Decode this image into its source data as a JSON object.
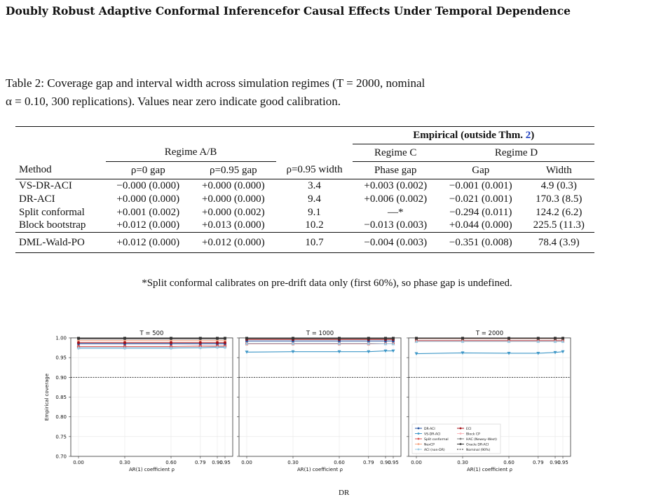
{
  "header": {
    "title": "Doubly Robust Adaptive Conformal Inferencefor Causal Effects Under Temporal Dependence"
  },
  "caption": {
    "line1": "Table 2: Coverage gap and interval width across simulation regimes (T = 2000, nominal",
    "line2": "α = 0.10, 300 replications). Values near zero indicate good calibration."
  },
  "table": {
    "group_empirical_prefix": "Empirical (outside Thm. ",
    "group_empirical_ref": "2",
    "group_empirical_suffix": ")",
    "group_ab": "Regime A/B",
    "group_c": "Regime C",
    "group_d": "Regime D",
    "columns": [
      "Method",
      "ρ=0 gap",
      "ρ=0.95 gap",
      "ρ=0.95 width",
      "Phase gap",
      "Gap",
      "Width"
    ],
    "rows": [
      [
        "VS-DR-ACI",
        "−0.000 (0.000)",
        "+0.000 (0.000)",
        "3.4",
        "+0.003 (0.002)",
        "−0.001 (0.001)",
        "4.9 (0.3)"
      ],
      [
        "DR-ACI",
        "+0.000 (0.000)",
        "+0.000 (0.000)",
        "9.4",
        "+0.006 (0.002)",
        "−0.021 (0.001)",
        "170.3 (8.5)"
      ],
      [
        "Split conformal",
        "+0.001 (0.002)",
        "+0.000 (0.002)",
        "9.1",
        "—*",
        "−0.294 (0.011)",
        "124.2 (6.2)"
      ],
      [
        "Block bootstrap",
        "+0.012 (0.000)",
        "+0.013 (0.000)",
        "10.2",
        "−0.013 (0.003)",
        "+0.044 (0.000)",
        "225.5 (11.3)"
      ]
    ],
    "baseline_row": [
      "DML-Wald-PO",
      "+0.012 (0.000)",
      "+0.012 (0.000)",
      "10.7",
      "−0.004 (0.003)",
      "−0.351 (0.008)",
      "78.4 (3.9)"
    ]
  },
  "footnote": "*Split conformal calibrates on pre-drift data only (first 60%), so phase gap is undefined.",
  "bottom_cut_text": "DR",
  "chart_data": {
    "type": "line",
    "panels": [
      "T = 500",
      "T = 1000",
      "T = 2000"
    ],
    "x": [
      0.0,
      0.3,
      0.6,
      0.79,
      0.9,
      0.95
    ],
    "x_tick_labels": [
      "0.00",
      "0.30",
      "0.60",
      "0.79",
      "0.90",
      "0.95"
    ],
    "xlabel": "AR(1) coefficient ρ",
    "ylabel": "Empirical coverage",
    "ylim": [
      0.7,
      1.0
    ],
    "y_ticks": [
      0.7,
      0.75,
      0.8,
      0.85,
      0.9,
      0.95,
      1.0
    ],
    "y_tick_labels": [
      "0.70",
      "0.75",
      "0.80",
      "0.85",
      "0.90",
      "0.95",
      "1.00"
    ],
    "nominal": 0.9,
    "nominal_label": "Nominal (90%)",
    "legend_location": "lower-left",
    "grid": true,
    "series": [
      {
        "name": "DR-ACI",
        "color": "#1f4e9e",
        "marker": "circle",
        "values": [
          [
            0.985,
            0.985,
            0.985,
            0.985,
            0.985,
            0.985
          ],
          [
            0.992,
            0.992,
            0.992,
            0.992,
            0.992,
            0.992
          ],
          [
            0.993,
            0.993,
            0.993,
            0.993,
            0.993,
            0.993
          ]
        ]
      },
      {
        "name": "VS-DR-ACI",
        "color": "#3e97c7",
        "marker": "triangle-down",
        "values": [
          [
            0.974,
            0.974,
            0.974,
            0.975,
            0.976,
            0.976
          ],
          [
            0.964,
            0.965,
            0.965,
            0.965,
            0.967,
            0.967
          ],
          [
            0.96,
            0.962,
            0.961,
            0.961,
            0.963,
            0.965
          ]
        ]
      },
      {
        "name": "Split conformal",
        "color": "#d9534f",
        "marker": "square",
        "values": [
          [
            0.978,
            0.978,
            0.978,
            0.979,
            0.979,
            0.979
          ],
          [
            0.985,
            0.985,
            0.985,
            0.985,
            0.985,
            0.985
          ],
          [
            0.993,
            0.993,
            0.993,
            0.993,
            0.993,
            0.993
          ]
        ]
      },
      {
        "name": "NexCP",
        "color": "#f4a582",
        "marker": "diamond",
        "values": [
          [
            0.993,
            0.993,
            0.993,
            0.993,
            0.993,
            0.993
          ],
          [
            0.997,
            0.997,
            0.997,
            0.997,
            0.997,
            0.997
          ],
          [
            0.998,
            0.998,
            0.998,
            0.998,
            0.998,
            0.998
          ]
        ]
      },
      {
        "name": "ACI (non-DR)",
        "color": "#9ecae1",
        "marker": "triangle-up",
        "values": [
          [
            0.975,
            0.975,
            0.975,
            0.976,
            0.977,
            0.977
          ],
          [
            0.986,
            0.986,
            0.986,
            0.986,
            0.985,
            0.985
          ],
          [
            0.991,
            0.991,
            0.991,
            0.991,
            0.991,
            0.991
          ]
        ]
      },
      {
        "name": "ECI",
        "color": "#a50f15",
        "marker": "circle",
        "values": [
          [
            0.988,
            0.988,
            0.988,
            0.988,
            0.988,
            0.988
          ],
          [
            0.996,
            0.996,
            0.996,
            0.996,
            0.996,
            0.996
          ],
          [
            0.999,
            0.999,
            0.999,
            0.999,
            0.999,
            0.999
          ]
        ]
      },
      {
        "name": "Block CP",
        "color": "#fbb4b9",
        "marker": "x",
        "values": [
          [
            0.998,
            0.998,
            0.998,
            0.998,
            0.998,
            0.998
          ],
          [
            0.999,
            0.999,
            0.999,
            0.999,
            0.999,
            0.999
          ],
          [
            0.999,
            0.999,
            0.999,
            0.999,
            0.999,
            0.999
          ]
        ]
      },
      {
        "name": "HAC (Newey–West)",
        "color": "#7f7f7f",
        "marker": "plus",
        "values": [
          [
            0.997,
            0.997,
            0.997,
            0.997,
            0.997,
            0.997
          ],
          [
            0.998,
            0.998,
            0.998,
            0.998,
            0.998,
            0.998
          ],
          [
            0.999,
            0.999,
            0.999,
            0.999,
            0.999,
            0.999
          ]
        ]
      },
      {
        "name": "Oracle DR-ACI",
        "color": "#333333",
        "marker": "square",
        "values": [
          [
            0.999,
            0.999,
            0.999,
            0.999,
            0.999,
            0.999
          ],
          [
            0.999,
            0.999,
            0.999,
            0.999,
            0.999,
            0.999
          ],
          [
            0.999,
            0.999,
            0.999,
            0.999,
            0.999,
            0.999
          ]
        ]
      }
    ]
  }
}
